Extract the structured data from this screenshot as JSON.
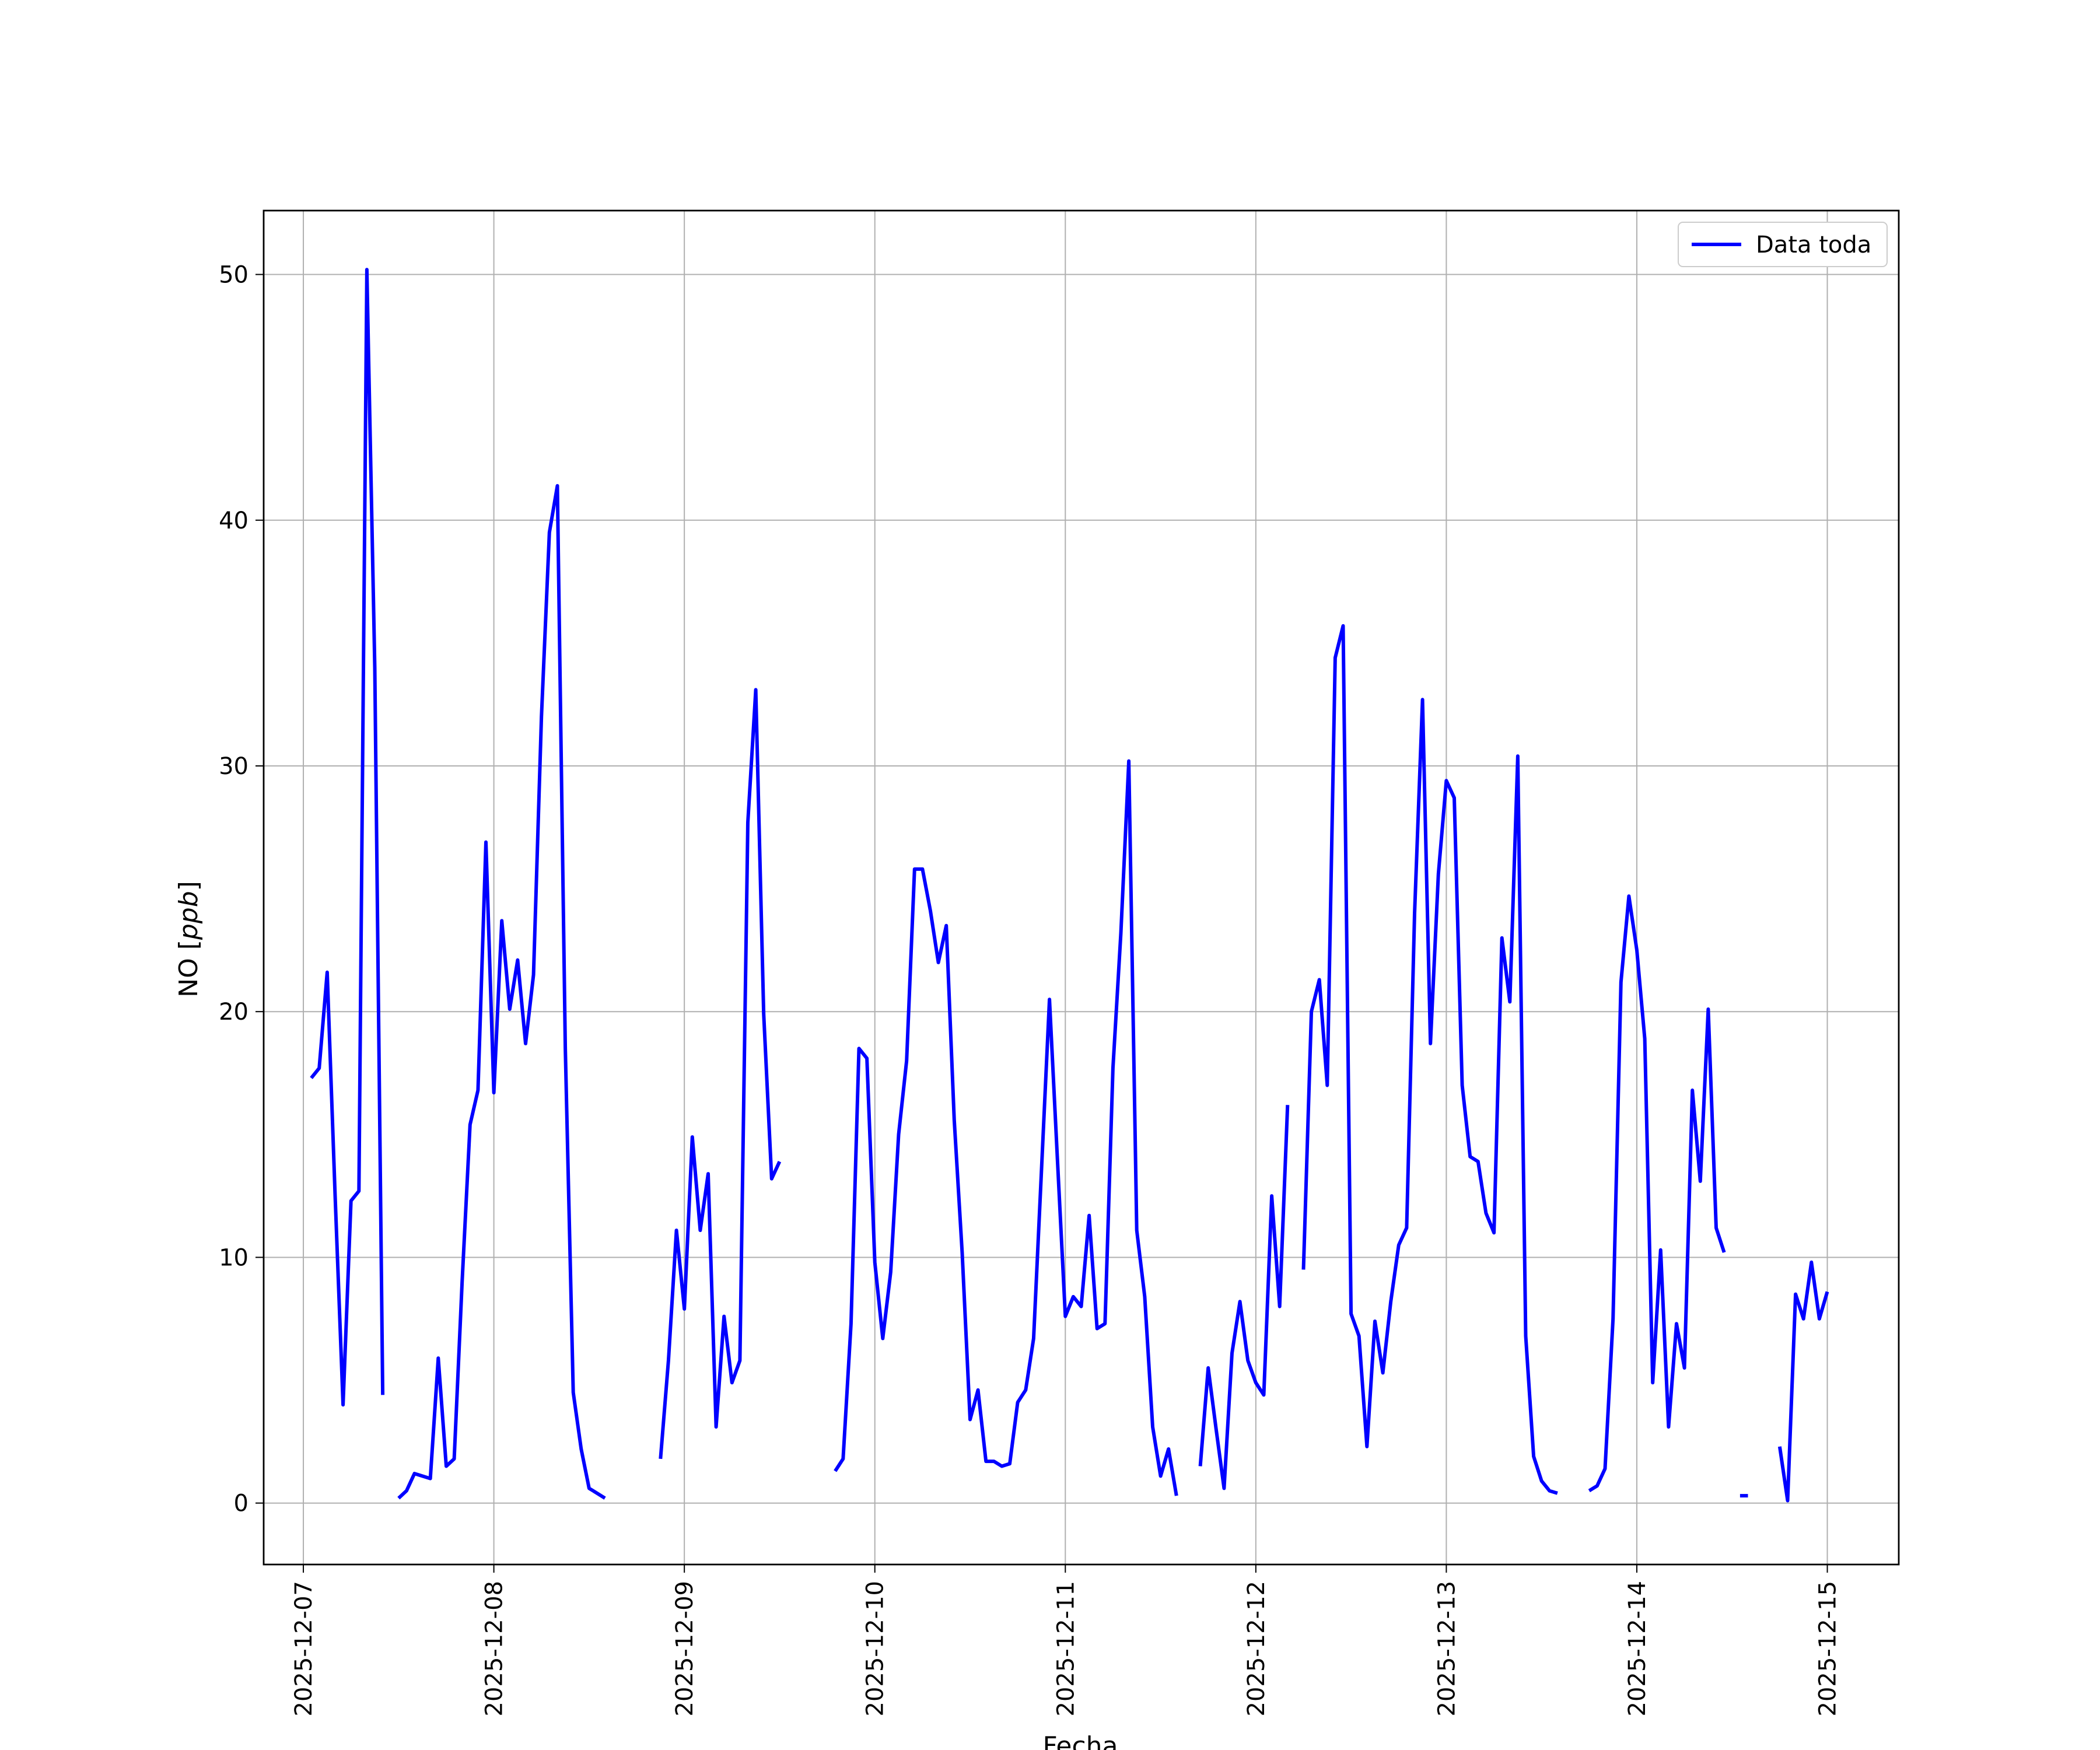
{
  "chart_data": {
    "type": "line",
    "title": "",
    "xlabel": "Fecha",
    "ylabel": "NO [ppb]",
    "xlim": [
      "2025-12-06 19:00",
      "2025-12-15 09:00"
    ],
    "ylim": [
      -2.5,
      52.6
    ],
    "grid": true,
    "legend_position": "top-right",
    "x_ticks": [
      "2025-12-07",
      "2025-12-08",
      "2025-12-09",
      "2025-12-10",
      "2025-12-11",
      "2025-12-12",
      "2025-12-13",
      "2025-12-14",
      "2025-12-15"
    ],
    "y_ticks": [
      0,
      10,
      20,
      30,
      40,
      50
    ],
    "series": [
      {
        "name": "Data toda",
        "color": "#0000ff",
        "segments": [
          [
            [
              "2025-12-07 01:00",
              17.3
            ],
            [
              "2025-12-07 02:00",
              17.7
            ],
            [
              "2025-12-07 03:00",
              21.6
            ],
            [
              "2025-12-07 04:00",
              12.5
            ],
            [
              "2025-12-07 05:00",
              4.0
            ],
            [
              "2025-12-07 06:00",
              12.3
            ],
            [
              "2025-12-07 07:00",
              12.7
            ],
            [
              "2025-12-07 08:00",
              50.2
            ],
            [
              "2025-12-07 09:00",
              34.0
            ],
            [
              "2025-12-07 10:00",
              4.4
            ]
          ],
          [
            [
              "2025-12-07 12:00",
              0.2
            ],
            [
              "2025-12-07 13:00",
              0.5
            ],
            [
              "2025-12-07 14:00",
              1.2
            ],
            [
              "2025-12-07 15:00",
              1.1
            ],
            [
              "2025-12-07 16:00",
              1.0
            ],
            [
              "2025-12-07 17:00",
              5.9
            ],
            [
              "2025-12-07 18:00",
              1.5
            ],
            [
              "2025-12-07 19:00",
              1.8
            ],
            [
              "2025-12-07 20:00",
              9.0
            ],
            [
              "2025-12-07 21:00",
              15.4
            ],
            [
              "2025-12-07 22:00",
              16.8
            ],
            [
              "2025-12-07 23:00",
              26.9
            ],
            [
              "2025-12-08 00:00",
              16.7
            ],
            [
              "2025-12-08 01:00",
              23.7
            ],
            [
              "2025-12-08 02:00",
              20.1
            ],
            [
              "2025-12-08 03:00",
              22.1
            ],
            [
              "2025-12-08 04:00",
              18.7
            ],
            [
              "2025-12-08 05:00",
              21.5
            ],
            [
              "2025-12-08 06:00",
              32.0
            ],
            [
              "2025-12-08 07:00",
              39.5
            ],
            [
              "2025-12-08 08:00",
              41.4
            ],
            [
              "2025-12-08 09:00",
              18.5
            ],
            [
              "2025-12-08 10:00",
              4.5
            ],
            [
              "2025-12-08 11:00",
              2.2
            ],
            [
              "2025-12-08 12:00",
              0.6
            ],
            [
              "2025-12-08 13:00",
              0.4
            ],
            [
              "2025-12-08 14:00",
              0.2
            ]
          ],
          [
            [
              "2025-12-08 21:00",
              1.8
            ],
            [
              "2025-12-08 22:00",
              5.8
            ],
            [
              "2025-12-08 23:00",
              11.1
            ],
            [
              "2025-12-09 00:00",
              7.9
            ],
            [
              "2025-12-09 01:00",
              14.9
            ],
            [
              "2025-12-09 02:00",
              11.1
            ],
            [
              "2025-12-09 03:00",
              13.4
            ],
            [
              "2025-12-09 04:00",
              3.1
            ],
            [
              "2025-12-09 05:00",
              7.6
            ],
            [
              "2025-12-09 06:00",
              4.9
            ],
            [
              "2025-12-09 07:00",
              5.8
            ],
            [
              "2025-12-09 08:00",
              27.7
            ],
            [
              "2025-12-09 09:00",
              33.1
            ],
            [
              "2025-12-09 10:00",
              19.9
            ],
            [
              "2025-12-09 11:00",
              13.2
            ],
            [
              "2025-12-09 12:00",
              13.9
            ]
          ],
          [
            [
              "2025-12-09 19:00",
              1.3
            ],
            [
              "2025-12-09 20:00",
              1.8
            ],
            [
              "2025-12-09 21:00",
              7.3
            ],
            [
              "2025-12-09 22:00",
              18.5
            ],
            [
              "2025-12-09 23:00",
              18.1
            ],
            [
              "2025-12-10 00:00",
              9.8
            ],
            [
              "2025-12-10 01:00",
              6.7
            ],
            [
              "2025-12-10 02:00",
              9.4
            ],
            [
              "2025-12-10 03:00",
              15.0
            ],
            [
              "2025-12-10 04:00",
              18.0
            ],
            [
              "2025-12-10 05:00",
              25.8
            ],
            [
              "2025-12-10 06:00",
              25.8
            ],
            [
              "2025-12-10 07:00",
              24.1
            ],
            [
              "2025-12-10 08:00",
              22.0
            ],
            [
              "2025-12-10 09:00",
              23.5
            ],
            [
              "2025-12-10 10:00",
              15.6
            ],
            [
              "2025-12-10 11:00",
              10.2
            ],
            [
              "2025-12-10 12:00",
              3.4
            ],
            [
              "2025-12-10 13:00",
              4.6
            ],
            [
              "2025-12-10 14:00",
              1.7
            ],
            [
              "2025-12-10 15:00",
              1.7
            ],
            [
              "2025-12-10 16:00",
              1.5
            ],
            [
              "2025-12-10 17:00",
              1.6
            ],
            [
              "2025-12-10 18:00",
              4.1
            ],
            [
              "2025-12-10 19:00",
              4.6
            ],
            [
              "2025-12-10 20:00",
              6.7
            ],
            [
              "2025-12-10 21:00",
              13.6
            ],
            [
              "2025-12-10 22:00",
              20.5
            ],
            [
              "2025-12-10 23:00",
              14.0
            ],
            [
              "2025-12-11 00:00",
              7.6
            ],
            [
              "2025-12-11 01:00",
              8.4
            ],
            [
              "2025-12-11 02:00",
              8.0
            ],
            [
              "2025-12-11 03:00",
              11.7
            ],
            [
              "2025-12-11 04:00",
              7.1
            ],
            [
              "2025-12-11 05:00",
              7.3
            ],
            [
              "2025-12-11 06:00",
              17.7
            ],
            [
              "2025-12-11 07:00",
              23.2
            ],
            [
              "2025-12-11 08:00",
              30.2
            ],
            [
              "2025-12-11 09:00",
              11.1
            ],
            [
              "2025-12-11 10:00",
              8.4
            ],
            [
              "2025-12-11 11:00",
              3.1
            ],
            [
              "2025-12-11 12:00",
              1.1
            ],
            [
              "2025-12-11 13:00",
              2.2
            ],
            [
              "2025-12-11 14:00",
              0.3
            ]
          ],
          [
            [
              "2025-12-11 17:00",
              1.5
            ],
            [
              "2025-12-11 18:00",
              5.5
            ],
            [
              "2025-12-11 19:00",
              3.0
            ],
            [
              "2025-12-11 20:00",
              0.6
            ],
            [
              "2025-12-11 21:00",
              6.1
            ],
            [
              "2025-12-11 22:00",
              8.2
            ],
            [
              "2025-12-11 23:00",
              5.8
            ],
            [
              "2025-12-12 00:00",
              4.9
            ],
            [
              "2025-12-12 01:00",
              4.4
            ],
            [
              "2025-12-12 02:00",
              12.5
            ],
            [
              "2025-12-12 03:00",
              8.0
            ],
            [
              "2025-12-12 04:00",
              16.2
            ]
          ],
          [
            [
              "2025-12-12 06:00",
              9.5
            ],
            [
              "2025-12-12 07:00",
              20.0
            ],
            [
              "2025-12-12 08:00",
              21.3
            ],
            [
              "2025-12-12 09:00",
              17.0
            ],
            [
              "2025-12-12 10:00",
              34.4
            ],
            [
              "2025-12-12 11:00",
              35.7
            ],
            [
              "2025-12-12 12:00",
              7.7
            ],
            [
              "2025-12-12 13:00",
              6.8
            ],
            [
              "2025-12-12 14:00",
              2.3
            ],
            [
              "2025-12-12 15:00",
              7.4
            ],
            [
              "2025-12-12 16:00",
              5.3
            ],
            [
              "2025-12-12 17:00",
              8.2
            ],
            [
              "2025-12-12 18:00",
              10.5
            ],
            [
              "2025-12-12 19:00",
              11.2
            ],
            [
              "2025-12-12 20:00",
              24.0
            ],
            [
              "2025-12-12 21:00",
              32.7
            ],
            [
              "2025-12-12 22:00",
              18.7
            ],
            [
              "2025-12-12 23:00",
              25.6
            ],
            [
              "2025-12-13 00:00",
              29.4
            ],
            [
              "2025-12-13 01:00",
              28.7
            ],
            [
              "2025-12-13 02:00",
              17.0
            ],
            [
              "2025-12-13 03:00",
              14.1
            ],
            [
              "2025-12-13 04:00",
              13.9
            ],
            [
              "2025-12-13 05:00",
              11.8
            ],
            [
              "2025-12-13 06:00",
              11.0
            ],
            [
              "2025-12-13 07:00",
              23.0
            ],
            [
              "2025-12-13 08:00",
              20.4
            ],
            [
              "2025-12-13 09:00",
              30.4
            ],
            [
              "2025-12-13 10:00",
              6.8
            ],
            [
              "2025-12-13 11:00",
              1.9
            ],
            [
              "2025-12-13 12:00",
              0.9
            ],
            [
              "2025-12-13 13:00",
              0.5
            ],
            [
              "2025-12-13 14:00",
              0.4
            ]
          ],
          [
            [
              "2025-12-13 18:00",
              0.5
            ],
            [
              "2025-12-13 19:00",
              0.7
            ],
            [
              "2025-12-13 20:00",
              1.4
            ],
            [
              "2025-12-13 21:00",
              7.5
            ],
            [
              "2025-12-13 22:00",
              21.2
            ],
            [
              "2025-12-13 23:00",
              24.7
            ],
            [
              "2025-12-14 00:00",
              22.5
            ],
            [
              "2025-12-14 01:00",
              18.9
            ],
            [
              "2025-12-14 02:00",
              4.9
            ],
            [
              "2025-12-14 03:00",
              10.3
            ],
            [
              "2025-12-14 04:00",
              3.1
            ],
            [
              "2025-12-14 05:00",
              7.3
            ],
            [
              "2025-12-14 06:00",
              5.5
            ],
            [
              "2025-12-14 07:00",
              16.8
            ],
            [
              "2025-12-14 08:00",
              13.1
            ],
            [
              "2025-12-14 09:00",
              20.1
            ],
            [
              "2025-12-14 10:00",
              11.2
            ],
            [
              "2025-12-14 11:00",
              10.2
            ]
          ],
          [
            [
              "2025-12-14 13:00",
              0.3
            ],
            [
              "2025-12-14 14:00",
              0.3
            ]
          ],
          [
            [
              "2025-12-14 18:00",
              2.3
            ],
            [
              "2025-12-14 19:00",
              0.1
            ],
            [
              "2025-12-14 20:00",
              8.5
            ],
            [
              "2025-12-14 21:00",
              7.5
            ],
            [
              "2025-12-14 22:00",
              9.8
            ],
            [
              "2025-12-14 23:00",
              7.5
            ],
            [
              "2025-12-15 00:00",
              8.6
            ]
          ]
        ]
      }
    ]
  }
}
